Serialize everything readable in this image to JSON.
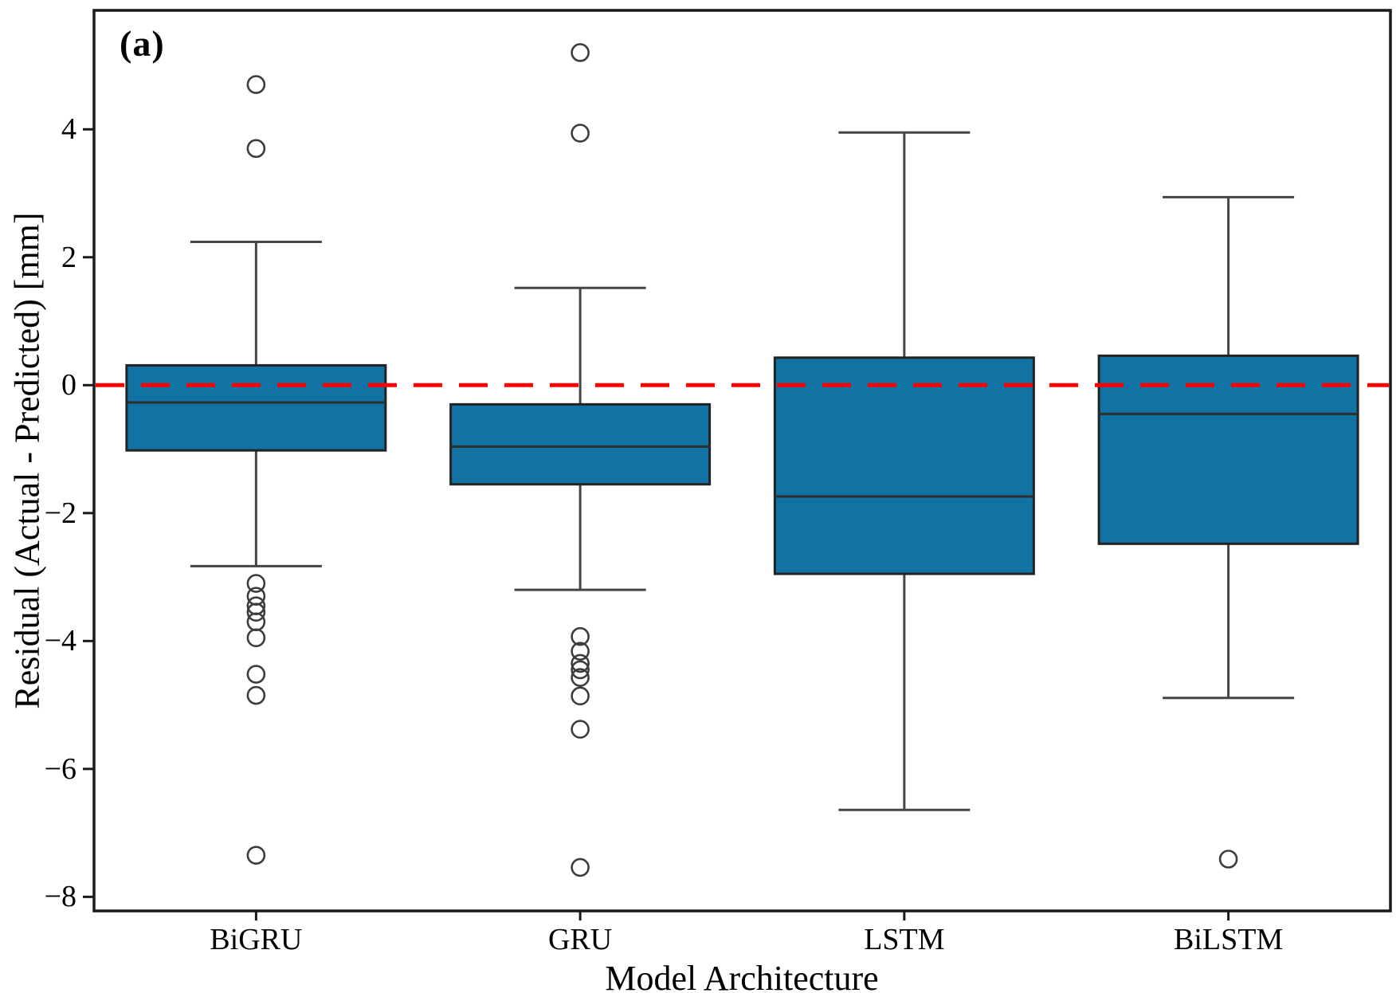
{
  "figure": {
    "background": "#ffffff",
    "panel_label": "(a)"
  },
  "chart_data": {
    "type": "boxplot",
    "title": "",
    "xlabel": "Model Architecture",
    "ylabel": "Residual (Actual - Predicted) [mm]",
    "categories": [
      "BiGRU",
      "GRU",
      "LSTM",
      "BiLSTM"
    ],
    "ylim": [
      -8.22,
      5.86
    ],
    "yticks": [
      4,
      2,
      0,
      -2,
      -4,
      -6,
      -8
    ],
    "ytick_labels": [
      "4",
      "2",
      "0",
      "−2",
      "−4",
      "−6",
      "−8"
    ],
    "grid": false,
    "legend": null,
    "reference_line": {
      "y": 0,
      "style": "dashed",
      "color": "#fe0000"
    },
    "colors": {
      "box_fill": "#1172a4",
      "box_edge": "#232323",
      "whisker": "#454545",
      "median": "#2e2e2e",
      "outlier_edge": "#3d3d3d",
      "spine": "#1a1a1a",
      "tick": "#1a1a1a",
      "text": "#000000"
    },
    "series": [
      {
        "name": "BiGRU",
        "whisker_low": -2.83,
        "q1": -1.02,
        "median": -0.27,
        "q3": 0.31,
        "whisker_high": 2.24,
        "outliers": [
          4.7,
          3.7,
          -3.1,
          -3.3,
          -3.45,
          -3.55,
          -3.7,
          -3.95,
          -4.52,
          -4.85,
          -7.35
        ]
      },
      {
        "name": "GRU",
        "whisker_low": -3.2,
        "q1": -1.55,
        "median": -0.96,
        "q3": -0.3,
        "whisker_high": 1.52,
        "outliers": [
          5.2,
          3.94,
          -3.93,
          -4.16,
          -4.35,
          -4.45,
          -4.57,
          -4.86,
          -5.38,
          -7.54
        ]
      },
      {
        "name": "LSTM",
        "whisker_low": -6.64,
        "q1": -2.95,
        "median": -1.74,
        "q3": 0.43,
        "whisker_high": 3.95,
        "outliers": []
      },
      {
        "name": "BiLSTM",
        "whisker_low": -4.89,
        "q1": -2.48,
        "median": -0.45,
        "q3": 0.46,
        "whisker_high": 2.94,
        "outliers": [
          -7.41
        ]
      }
    ]
  }
}
